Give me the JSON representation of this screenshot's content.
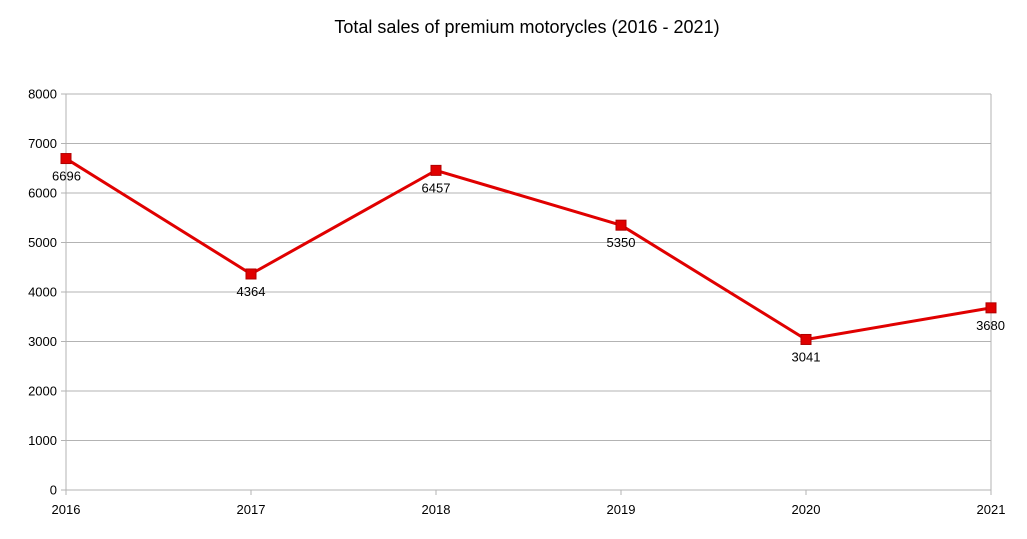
{
  "chart_data": {
    "type": "line",
    "title": "Total sales of premium motorycles (2016 - 2021)",
    "xlabel": "",
    "ylabel": "",
    "categories": [
      "2016",
      "2017",
      "2018",
      "2019",
      "2020",
      "2021"
    ],
    "series": [
      {
        "values": [
          6696,
          4364,
          6457,
          5350,
          3041,
          3680
        ]
      }
    ],
    "data_labels": [
      "6696",
      "4364",
      "6457",
      "5350",
      "3041",
      "3680"
    ],
    "ylim": [
      0,
      8000
    ],
    "yticks": [
      "0",
      "1000",
      "2000",
      "3000",
      "4000",
      "5000",
      "6000",
      "7000",
      "8000"
    ],
    "grid": true,
    "legend": "none",
    "line_color": "#e00000",
    "marker_color": "#e00000",
    "marker": "square"
  }
}
